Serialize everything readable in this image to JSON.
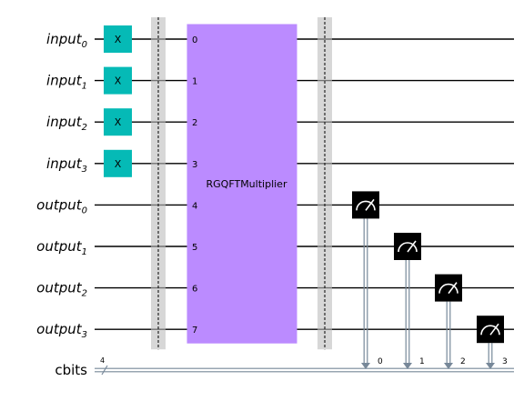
{
  "registers": [
    {
      "name": "input",
      "index": "0"
    },
    {
      "name": "input",
      "index": "1"
    },
    {
      "name": "input",
      "index": "2"
    },
    {
      "name": "input",
      "index": "3"
    },
    {
      "name": "output",
      "index": "0"
    },
    {
      "name": "output",
      "index": "1"
    },
    {
      "name": "output",
      "index": "2"
    },
    {
      "name": "output",
      "index": "3"
    }
  ],
  "classical_register": {
    "name": "cbits",
    "size": "4"
  },
  "x_gate_label": "X",
  "multiplier_gate": {
    "label": "RGQFTMultiplier",
    "qubit_indices": [
      "0",
      "1",
      "2",
      "3",
      "4",
      "5",
      "6",
      "7"
    ]
  },
  "measurements": [
    {
      "qubit": 4,
      "cbit": "0"
    },
    {
      "qubit": 5,
      "cbit": "1"
    },
    {
      "qubit": 6,
      "cbit": "2"
    },
    {
      "qubit": 7,
      "cbit": "3"
    }
  ],
  "colors": {
    "x_gate": "#05bab6",
    "multiplier_gate": "#bb8bff",
    "classical_wire": "#778899",
    "barrier": "#bdbdbd"
  }
}
